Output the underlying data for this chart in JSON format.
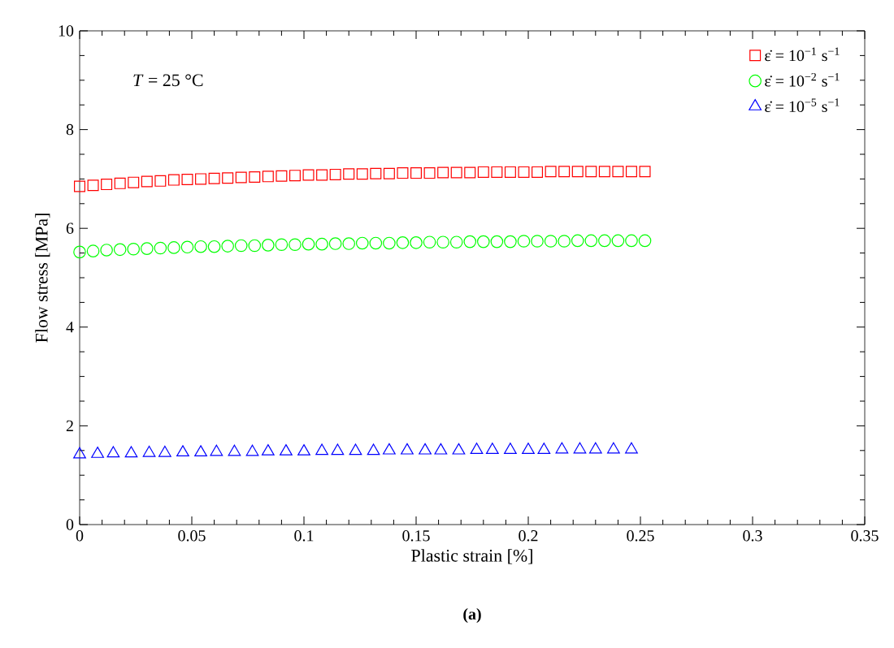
{
  "chart_data": {
    "type": "scatter",
    "xlabel": "Plastic strain [%]",
    "ylabel": "Flow stress [MPa]",
    "annotations": [
      "*T* = 25 °C",
      "(a)"
    ],
    "xlim": [
      0,
      0.35
    ],
    "xticks": [
      0,
      0.05,
      0.1,
      0.15,
      0.2,
      0.25,
      0.3,
      0.35
    ],
    "ylim": [
      0,
      10
    ],
    "yticks": [
      0,
      2,
      4,
      6,
      8,
      10
    ],
    "grid": false,
    "legend": "top right",
    "series": [
      {
        "name": "ε̇ = 10$^{−1}$ s$^{−1}$",
        "color": "#ff0000",
        "marker": "square",
        "x": [
          0,
          0.006,
          0.012,
          0.018,
          0.024,
          0.03,
          0.036,
          0.042,
          0.048,
          0.054,
          0.06,
          0.066,
          0.072,
          0.078,
          0.084,
          0.09,
          0.096,
          0.102,
          0.108,
          0.114,
          0.12,
          0.126,
          0.132,
          0.138,
          0.144,
          0.15,
          0.156,
          0.162,
          0.168,
          0.174,
          0.18,
          0.186,
          0.192,
          0.198,
          0.204,
          0.21,
          0.216,
          0.222,
          0.228,
          0.234,
          0.24,
          0.246,
          0.252
        ],
        "values": [
          6.85,
          6.87,
          6.89,
          6.91,
          6.93,
          6.95,
          6.96,
          6.98,
          6.99,
          7.0,
          7.01,
          7.02,
          7.03,
          7.04,
          7.05,
          7.06,
          7.07,
          7.08,
          7.08,
          7.09,
          7.1,
          7.1,
          7.11,
          7.11,
          7.12,
          7.12,
          7.12,
          7.13,
          7.13,
          7.13,
          7.14,
          7.14,
          7.14,
          7.14,
          7.14,
          7.15,
          7.15,
          7.15,
          7.15,
          7.15,
          7.15,
          7.15,
          7.15
        ]
      },
      {
        "name": "ε̇ = 10$^{−2}$ s$^{−1}$",
        "color": "#00ff00",
        "marker": "circle",
        "x": [
          0,
          0.006,
          0.012,
          0.018,
          0.024,
          0.03,
          0.036,
          0.042,
          0.048,
          0.054,
          0.06,
          0.066,
          0.072,
          0.078,
          0.084,
          0.09,
          0.096,
          0.102,
          0.108,
          0.114,
          0.12,
          0.126,
          0.132,
          0.138,
          0.144,
          0.15,
          0.156,
          0.162,
          0.168,
          0.174,
          0.18,
          0.186,
          0.192,
          0.198,
          0.204,
          0.21,
          0.216,
          0.222,
          0.228,
          0.234,
          0.24,
          0.246,
          0.252
        ],
        "values": [
          5.52,
          5.54,
          5.56,
          5.57,
          5.58,
          5.59,
          5.6,
          5.61,
          5.62,
          5.63,
          5.63,
          5.64,
          5.65,
          5.65,
          5.66,
          5.67,
          5.67,
          5.68,
          5.68,
          5.69,
          5.69,
          5.7,
          5.7,
          5.7,
          5.71,
          5.71,
          5.72,
          5.72,
          5.72,
          5.73,
          5.73,
          5.73,
          5.73,
          5.74,
          5.74,
          5.74,
          5.74,
          5.75,
          5.75,
          5.75,
          5.75,
          5.75,
          5.75
        ]
      },
      {
        "name": "ε̇ = 10$^{−5}$ s$^{−1}$",
        "color": "#0000ff",
        "marker": "triangle",
        "x": [
          0,
          0.008,
          0.015,
          0.023,
          0.031,
          0.038,
          0.046,
          0.054,
          0.061,
          0.069,
          0.077,
          0.084,
          0.092,
          0.1,
          0.108,
          0.115,
          0.123,
          0.131,
          0.138,
          0.146,
          0.154,
          0.161,
          0.169,
          0.177,
          0.184,
          0.192,
          0.2,
          0.207,
          0.215,
          0.223,
          0.23,
          0.238,
          0.246
        ],
        "values": [
          1.42,
          1.43,
          1.44,
          1.44,
          1.45,
          1.45,
          1.46,
          1.46,
          1.47,
          1.47,
          1.47,
          1.48,
          1.48,
          1.48,
          1.49,
          1.49,
          1.49,
          1.49,
          1.5,
          1.5,
          1.5,
          1.5,
          1.5,
          1.51,
          1.51,
          1.51,
          1.51,
          1.51,
          1.52,
          1.52,
          1.52,
          1.52,
          1.52
        ]
      }
    ]
  }
}
